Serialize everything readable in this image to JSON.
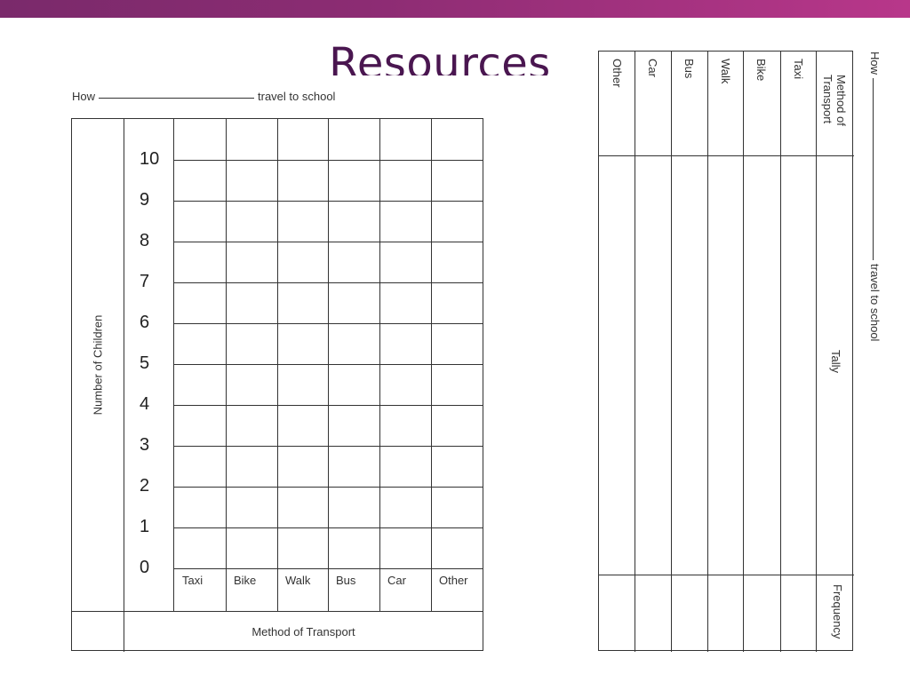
{
  "slide": {
    "title": "Resources"
  },
  "bar_worksheet": {
    "how_prefix": "How",
    "how_suffix": "travel to school",
    "y_axis_label": "Number of Children",
    "x_axis_label": "Method of Transport",
    "y_ticks": [
      "10",
      "9",
      "8",
      "7",
      "6",
      "5",
      "4",
      "3",
      "2",
      "1",
      "0"
    ],
    "categories": [
      "Taxi",
      "Bike",
      "Walk",
      "Bus",
      "Car",
      "Other"
    ]
  },
  "tally_worksheet": {
    "how_prefix": "How",
    "how_suffix": "travel to school",
    "header_label": "Method of Transport",
    "tally_label": "Tally",
    "frequency_label": "Frequency",
    "methods": [
      "Taxi",
      "Bike",
      "Walk",
      "Bus",
      "Car",
      "Other"
    ]
  }
}
